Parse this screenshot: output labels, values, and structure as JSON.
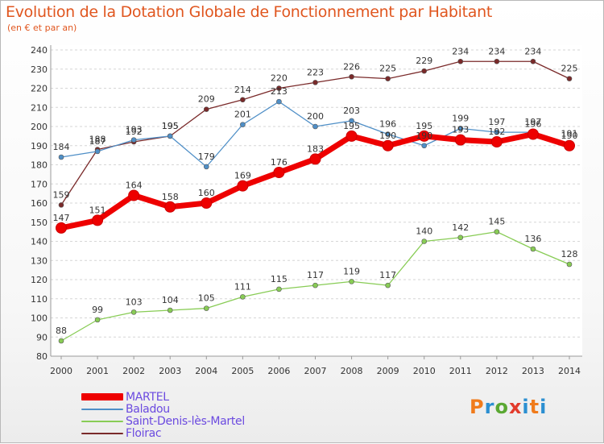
{
  "chart_data": {
    "type": "line",
    "title": "Evolution de la Dotation Globale de Fonctionnement par Habitant",
    "subtitle": "(en € et par an)",
    "categories": [
      "2000",
      "2001",
      "2002",
      "2003",
      "2004",
      "2005",
      "2006",
      "2007",
      "2008",
      "2009",
      "2010",
      "2011",
      "2012",
      "2013",
      "2014"
    ],
    "ylim": [
      80,
      240
    ],
    "yticks": [
      80,
      90,
      100,
      110,
      120,
      130,
      140,
      150,
      160,
      170,
      180,
      190,
      200,
      210,
      220,
      230,
      240
    ],
    "grid": "horizontal-dashed",
    "legend_position": "bottom-left",
    "series": [
      {
        "name": "MARTEL",
        "color": "#ee0000",
        "values": [
          147,
          151,
          164,
          158,
          160,
          169,
          176,
          183,
          195,
          190,
          195,
          193,
          192,
          196,
          190
        ]
      },
      {
        "name": "Baladou",
        "color": "#4f8fc7",
        "values": [
          184,
          187,
          193,
          195,
          179,
          201,
          213,
          200,
          203,
          196,
          190,
          199,
          197,
          197,
          191
        ]
      },
      {
        "name": "Saint-Denis-lès-Martel",
        "color": "#88cc55",
        "values": [
          88,
          99,
          103,
          104,
          105,
          111,
          115,
          117,
          119,
          117,
          140,
          142,
          145,
          136,
          128
        ]
      },
      {
        "name": "Floirac",
        "color": "#7a2a2a",
        "values": [
          159,
          188,
          192,
          195,
          209,
          214,
          220,
          223,
          226,
          225,
          229,
          234,
          234,
          234,
          225
        ]
      }
    ],
    "data_labels": [
      [
        "147",
        "151",
        "164",
        "158",
        "160",
        "169",
        "176",
        "183",
        "195",
        "190",
        "195",
        "193",
        "192",
        "196",
        "190"
      ],
      [
        "184",
        "187",
        "193",
        "195",
        "179",
        "201",
        "213",
        "200",
        "203",
        "196",
        "190",
        "199",
        "197",
        "197",
        "191"
      ],
      [
        "88",
        "99",
        "103",
        "104",
        "105",
        "111",
        "115",
        "117",
        "119",
        "117",
        "140",
        "142",
        "145",
        "136",
        "128"
      ],
      [
        "159",
        "188",
        "192",
        "195",
        "209",
        "214",
        "220",
        "223",
        "226",
        "225",
        "229",
        "234",
        "234",
        "234",
        "225"
      ]
    ]
  },
  "logo_text": "Proxiti"
}
